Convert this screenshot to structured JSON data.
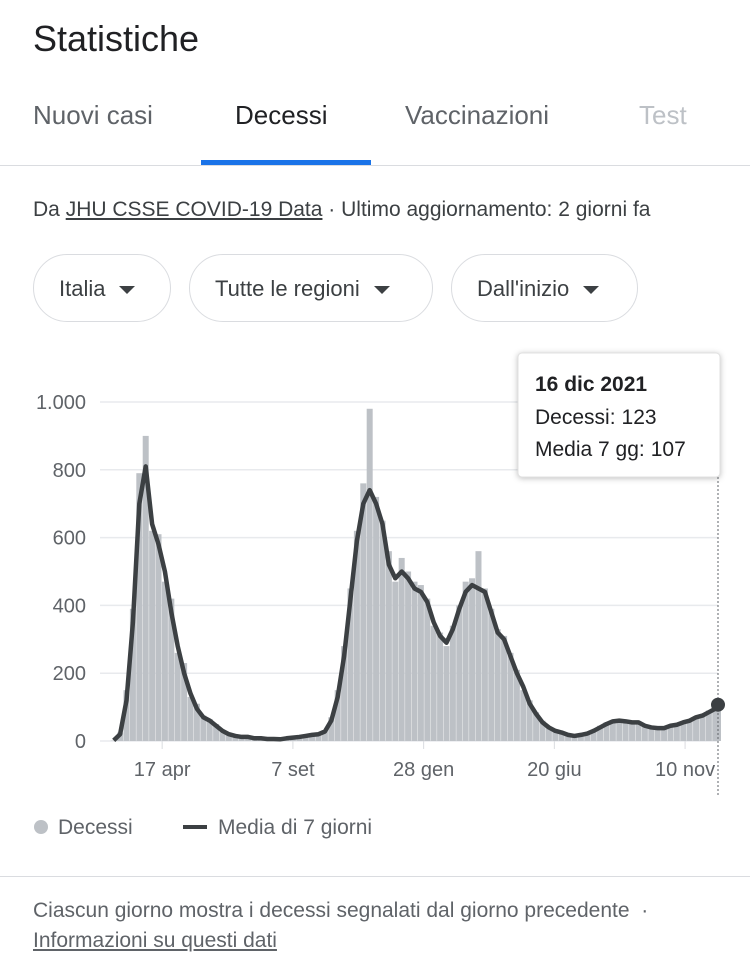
{
  "header": {
    "title": "Statistiche",
    "tabs": [
      "Nuovi casi",
      "Decessi",
      "Vaccinazioni",
      "Test"
    ]
  },
  "source": {
    "prefix": "Da",
    "link": "JHU CSSE COVID-19 Data",
    "suffix": "· Ultimo aggiornamento: 2 giorni fa"
  },
  "filters": [
    "Italia",
    "Tutte le regioni",
    "Dall'inizio"
  ],
  "chart_data": {
    "type": "bar_line",
    "x": [
      0,
      7,
      14,
      21,
      28,
      35,
      42,
      49,
      56,
      63,
      70,
      77,
      84,
      91,
      98,
      105,
      112,
      119,
      126,
      133,
      140,
      147,
      154,
      161,
      168,
      175,
      182,
      189,
      196,
      203,
      210,
      217,
      224,
      231,
      238,
      245,
      252,
      259,
      266,
      273,
      280,
      287,
      294,
      301,
      308,
      315,
      322,
      329,
      336,
      343,
      350,
      357,
      364,
      371,
      378,
      385,
      392,
      399,
      406,
      413,
      420,
      427,
      434,
      441,
      448,
      455,
      462,
      469,
      476,
      483,
      490,
      497,
      504,
      511,
      518,
      525,
      532,
      539,
      546,
      553,
      560,
      567,
      574,
      581,
      588,
      595,
      602,
      609,
      616,
      623,
      630,
      637,
      644,
      651,
      658,
      661
    ],
    "xlim": [
      -15,
      661
    ],
    "xticks": [
      {
        "value": 53,
        "label": "17 apr"
      },
      {
        "value": 196,
        "label": "7 set"
      },
      {
        "value": 339,
        "label": "28 gen"
      },
      {
        "value": 482,
        "label": "20 giu"
      },
      {
        "value": 625,
        "label": "10 nov"
      }
    ],
    "ylim": [
      0,
      1000
    ],
    "yticks": [
      0,
      200,
      400,
      600,
      800,
      {
        "value": 1000,
        "label": "1.000"
      }
    ],
    "grid": true,
    "series": [
      {
        "name": "Decessi",
        "color": "#bdc1c6",
        "values": [
          1,
          25,
          150,
          390,
          790,
          900,
          620,
          610,
          470,
          420,
          260,
          230,
          130,
          110,
          75,
          65,
          50,
          28,
          22,
          18,
          10,
          15,
          6,
          10,
          5,
          7,
          4,
          9,
          12,
          14,
          14,
          20,
          24,
          30,
          70,
          150,
          280,
          450,
          620,
          760,
          980,
          720,
          650,
          560,
          470,
          540,
          500,
          470,
          460,
          420,
          340,
          320,
          280,
          340,
          400,
          470,
          480,
          560,
          450,
          390,
          330,
          310,
          260,
          210,
          150,
          120,
          85,
          60,
          42,
          28,
          28,
          16,
          17,
          20,
          25,
          32,
          45,
          55,
          62,
          58,
          60,
          52,
          58,
          48,
          42,
          36,
          40,
          48,
          50,
          58,
          62,
          72,
          78,
          90,
          100,
          123
        ]
      },
      {
        "name": "Media di 7 giorni",
        "color": "#3c4043",
        "values": [
          2,
          20,
          120,
          350,
          700,
          810,
          640,
          580,
          500,
          380,
          280,
          200,
          140,
          95,
          70,
          60,
          45,
          30,
          20,
          15,
          12,
          12,
          8,
          8,
          6,
          6,
          5,
          8,
          10,
          12,
          15,
          18,
          20,
          28,
          60,
          130,
          250,
          420,
          590,
          700,
          740,
          700,
          640,
          520,
          480,
          500,
          480,
          450,
          440,
          410,
          350,
          310,
          290,
          330,
          390,
          440,
          460,
          450,
          440,
          380,
          320,
          300,
          250,
          200,
          160,
          110,
          80,
          55,
          40,
          30,
          25,
          18,
          15,
          18,
          22,
          30,
          40,
          50,
          58,
          60,
          58,
          55,
          55,
          45,
          40,
          38,
          38,
          45,
          48,
          55,
          60,
          70,
          75,
          85,
          95,
          107
        ]
      }
    ],
    "tooltip": {
      "date": "16 dic 2021",
      "labels": [
        "Decessi:",
        "Media 7 gg:"
      ]
    }
  },
  "footer": {
    "text": "Ciascun giorno mostra i decessi segnalati dal giorno precedente",
    "separator": "·",
    "link": "Informazioni su questi dati"
  }
}
